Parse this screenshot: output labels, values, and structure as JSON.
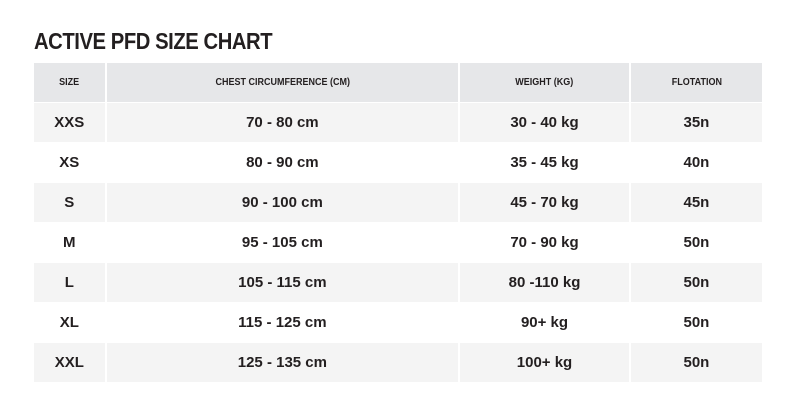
{
  "title": "ACTIVE PFD SIZE CHART",
  "columns": [
    "SIZE",
    "CHEST CIRCUMFERENCE (CM)",
    "WEIGHT (KG)",
    "FLOTATION"
  ],
  "rows": [
    [
      "XXS",
      "70 - 80 cm",
      "30 - 40 kg",
      "35n"
    ],
    [
      "XS",
      "80 - 90 cm",
      "35 - 45 kg",
      "40n"
    ],
    [
      "S",
      "90 - 100 cm",
      "45 - 70 kg",
      "45n"
    ],
    [
      "M",
      "95 - 105 cm",
      "70 - 90 kg",
      "50n"
    ],
    [
      "L",
      "105 - 115 cm",
      "80 -110 kg",
      "50n"
    ],
    [
      "XL",
      "115 - 125 cm",
      "90+ kg",
      "50n"
    ],
    [
      "XXL",
      "125 - 135 cm",
      "100+ kg",
      "50n"
    ]
  ],
  "colors": {
    "header_bg": "#e6e7e9",
    "stripe_bg": "#f4f4f4",
    "text": "#231f20"
  }
}
